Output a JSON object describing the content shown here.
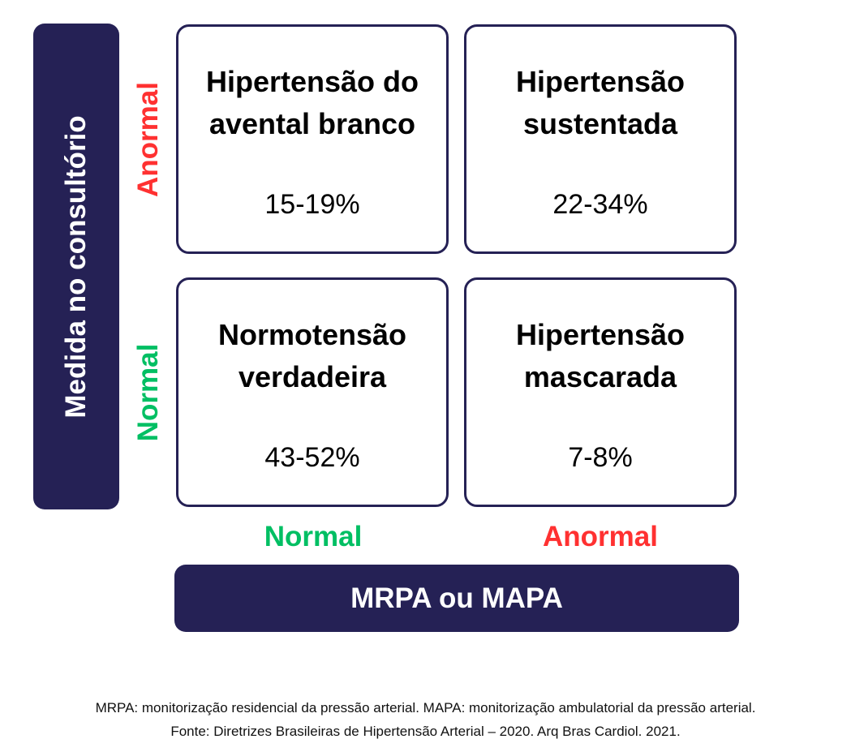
{
  "y_axis_title": "Medida no consultório",
  "x_axis_title": "MRPA ou MAPA",
  "row_labels": {
    "top": "Anormal",
    "bottom": "Normal"
  },
  "col_labels": {
    "left": "Normal",
    "right": "Anormal"
  },
  "cells": {
    "top_left": {
      "line1": "Hipertensão do",
      "line2": "avental branco",
      "percent": "15-19%"
    },
    "top_right": {
      "line1": "Hipertensão",
      "line2": "sustentada",
      "percent": "22-34%"
    },
    "bottom_left": {
      "line1": "Normotensão",
      "line2": "verdadeira",
      "percent": "43-52%"
    },
    "bottom_right": {
      "line1": "Hipertensão",
      "line2": "mascarada",
      "percent": "7-8%"
    }
  },
  "footnote": {
    "line1": "MRPA: monitorização residencial da pressão arterial. MAPA: monitorização ambulatorial da pressão arterial.",
    "line2": "Fonte: Diretrizes Brasileiras de Hipertensão Arterial – 2020. Arq Bras Cardiol. 2021."
  },
  "colors": {
    "navy": "#252155",
    "abnormal": "#ff3131",
    "normal": "#00bf63"
  }
}
